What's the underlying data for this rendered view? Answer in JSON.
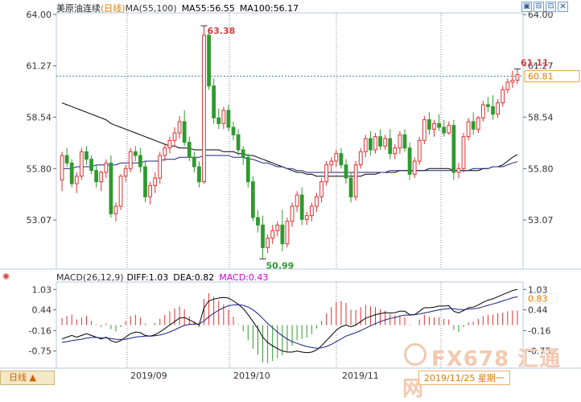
{
  "header": {
    "symbol": "美原油连续",
    "period_tag": "(日线)",
    "ma_label": "MA(55,100)",
    "ma55": "MA55:56.55",
    "ma100": "MA100:56.17"
  },
  "macd_header": {
    "label": "MACD(26,12,9)",
    "diff": "DIFF:1.03",
    "dea": "DEA:0.82",
    "macd": "MACD:0.43"
  },
  "price_axis": {
    "left_ticks": [
      "64.00",
      "61.27",
      "58.54",
      "55.80",
      "53.07"
    ],
    "right_ticks": [
      "64.00",
      "61.27",
      "58.54",
      "55.80",
      "53.07"
    ],
    "current_price": "60.81"
  },
  "macd_axis": {
    "left_ticks": [
      "1.03",
      "0.44",
      "-0.16",
      "-0.75"
    ],
    "right_ticks": [
      "1.03",
      "0.44",
      "-0.16",
      "-0.75"
    ],
    "right_marker": "0.83"
  },
  "annotations": {
    "high": "63.38",
    "low": "50.99",
    "last_high": "61.11"
  },
  "x_labels": [
    "2019/09",
    "2019/10",
    "2019/11"
  ],
  "footer": {
    "period_button": "日线 ▲",
    "date_box": "2019/11/25  星期一",
    "watermark": "FX678 汇通网"
  },
  "toolbar": [
    "▣",
    "⊟",
    "⊡",
    "✕"
  ],
  "colors": {
    "up": "#e03030",
    "down": "#2f9a2f",
    "ma55": "#000000",
    "ma100": "#1a2080",
    "grid": "#9fb4d0",
    "last_line": "#2f7fb0",
    "accent": "#e07b00"
  },
  "chart_data": [
    {
      "type": "candlestick",
      "title": "美原油连续(日线)",
      "ylim": [
        50.5,
        64.0
      ],
      "y_ticks": [
        64.0,
        61.27,
        58.54,
        55.8,
        53.07
      ],
      "x_labels": [
        "2019/09",
        "2019/10",
        "2019/11"
      ],
      "candles": [
        [
          55.2,
          56.7,
          54.6,
          56.5
        ],
        [
          56.5,
          56.9,
          55.9,
          56.1
        ],
        [
          56.1,
          56.3,
          54.8,
          55.0
        ],
        [
          55.0,
          55.6,
          54.5,
          55.4
        ],
        [
          55.4,
          56.9,
          55.2,
          56.7
        ],
        [
          56.7,
          57.0,
          56.0,
          56.3
        ],
        [
          56.3,
          56.5,
          55.5,
          55.7
        ],
        [
          55.7,
          56.0,
          54.8,
          55.1
        ],
        [
          55.1,
          55.7,
          54.6,
          55.6
        ],
        [
          55.6,
          56.3,
          55.3,
          56.1
        ],
        [
          56.1,
          56.5,
          53.2,
          53.4
        ],
        [
          53.4,
          54.0,
          53.0,
          53.8
        ],
        [
          53.8,
          55.5,
          53.6,
          55.4
        ],
        [
          55.4,
          56.0,
          55.1,
          55.8
        ],
        [
          55.8,
          56.9,
          55.6,
          56.7
        ],
        [
          56.7,
          57.0,
          56.2,
          56.5
        ],
        [
          56.5,
          56.9,
          55.6,
          55.9
        ],
        [
          55.9,
          56.2,
          54.0,
          54.3
        ],
        [
          54.3,
          55.1,
          53.9,
          54.9
        ],
        [
          54.9,
          55.6,
          54.5,
          55.3
        ],
        [
          55.3,
          56.7,
          55.0,
          56.5
        ],
        [
          56.5,
          57.1,
          56.2,
          56.9
        ],
        [
          56.9,
          57.5,
          56.6,
          57.3
        ],
        [
          57.3,
          58.0,
          57.0,
          57.7
        ],
        [
          57.7,
          58.6,
          57.4,
          58.3
        ],
        [
          58.3,
          58.9,
          57.0,
          57.2
        ],
        [
          57.2,
          57.5,
          56.2,
          56.4
        ],
        [
          56.4,
          56.7,
          55.6,
          55.9
        ],
        [
          55.9,
          56.2,
          54.8,
          55.1
        ],
        [
          55.1,
          63.4,
          55.0,
          62.9
        ],
        [
          62.9,
          63.2,
          60.0,
          60.2
        ],
        [
          60.2,
          60.6,
          58.2,
          58.5
        ],
        [
          58.5,
          59.0,
          57.9,
          58.2
        ],
        [
          58.2,
          59.1,
          57.9,
          58.9
        ],
        [
          58.9,
          59.2,
          57.8,
          58.0
        ],
        [
          58.0,
          58.3,
          57.3,
          57.6
        ],
        [
          57.6,
          57.9,
          56.5,
          56.8
        ],
        [
          56.8,
          57.0,
          56.0,
          56.4
        ],
        [
          56.4,
          56.6,
          54.8,
          55.1
        ],
        [
          55.1,
          55.4,
          53.0,
          53.2
        ],
        [
          53.2,
          53.6,
          52.4,
          52.8
        ],
        [
          52.8,
          53.3,
          51.0,
          51.6
        ],
        [
          51.6,
          52.3,
          51.3,
          52.1
        ],
        [
          52.1,
          52.8,
          51.8,
          52.5
        ],
        [
          52.5,
          53.0,
          52.2,
          52.8
        ],
        [
          52.8,
          53.6,
          51.4,
          51.8
        ],
        [
          51.8,
          53.2,
          51.6,
          53.0
        ],
        [
          53.0,
          54.0,
          52.7,
          53.8
        ],
        [
          53.8,
          54.6,
          53.5,
          54.4
        ],
        [
          54.4,
          54.8,
          52.8,
          53.1
        ],
        [
          53.1,
          53.5,
          52.8,
          53.3
        ],
        [
          53.3,
          54.0,
          53.0,
          53.8
        ],
        [
          53.8,
          54.5,
          53.5,
          54.3
        ],
        [
          54.3,
          55.3,
          54.0,
          55.1
        ],
        [
          55.1,
          56.2,
          54.9,
          56.0
        ],
        [
          56.0,
          56.4,
          55.6,
          56.2
        ],
        [
          56.2,
          56.8,
          55.9,
          56.6
        ],
        [
          56.6,
          56.9,
          55.8,
          56.0
        ],
        [
          56.0,
          56.3,
          55.0,
          55.3
        ],
        [
          55.3,
          55.6,
          54.0,
          54.3
        ],
        [
          54.3,
          56.2,
          54.1,
          56.0
        ],
        [
          56.0,
          56.9,
          55.8,
          56.7
        ],
        [
          56.7,
          57.6,
          56.4,
          57.4
        ],
        [
          57.4,
          57.8,
          56.5,
          56.8
        ],
        [
          56.8,
          57.7,
          56.6,
          57.5
        ],
        [
          57.5,
          57.9,
          56.8,
          57.0
        ],
        [
          57.0,
          57.6,
          56.8,
          57.4
        ],
        [
          57.4,
          57.9,
          56.3,
          56.6
        ],
        [
          56.6,
          57.1,
          56.3,
          56.9
        ],
        [
          56.9,
          57.8,
          56.6,
          57.6
        ],
        [
          57.6,
          57.9,
          56.7,
          56.9
        ],
        [
          56.9,
          57.2,
          55.2,
          55.5
        ],
        [
          55.5,
          56.4,
          55.3,
          56.2
        ],
        [
          56.2,
          57.5,
          56.0,
          57.3
        ],
        [
          57.3,
          58.6,
          57.1,
          58.4
        ],
        [
          58.4,
          58.8,
          57.6,
          57.9
        ],
        [
          57.9,
          58.4,
          57.5,
          58.2
        ],
        [
          58.2,
          58.7,
          57.8,
          58.0
        ],
        [
          58.0,
          58.4,
          57.5,
          57.7
        ],
        [
          57.7,
          58.3,
          57.6,
          58.1
        ],
        [
          58.1,
          58.4,
          55.2,
          55.6
        ],
        [
          55.6,
          56.1,
          55.3,
          55.8
        ],
        [
          55.8,
          57.7,
          55.6,
          57.5
        ],
        [
          57.5,
          58.5,
          57.3,
          58.3
        ],
        [
          58.3,
          58.8,
          57.6,
          57.9
        ],
        [
          57.9,
          58.6,
          57.7,
          58.5
        ],
        [
          58.5,
          59.4,
          58.3,
          59.2
        ],
        [
          59.2,
          59.6,
          58.8,
          59.1
        ],
        [
          59.1,
          59.7,
          58.4,
          58.7
        ],
        [
          58.7,
          59.5,
          58.5,
          59.3
        ],
        [
          59.3,
          60.2,
          59.1,
          60.0
        ],
        [
          60.0,
          60.6,
          59.8,
          60.4
        ],
        [
          60.4,
          61.0,
          60.1,
          60.5
        ],
        [
          60.5,
          61.1,
          60.3,
          60.8
        ]
      ],
      "ma55": [
        59.3,
        59.2,
        59.1,
        59.0,
        58.9,
        58.8,
        58.7,
        58.6,
        58.5,
        58.4,
        58.2,
        58.1,
        58.0,
        57.9,
        57.8,
        57.7,
        57.6,
        57.5,
        57.4,
        57.3,
        57.2,
        57.1,
        57.0,
        57.0,
        56.9,
        56.9,
        56.9,
        56.8,
        56.8,
        56.8,
        56.8,
        56.8,
        56.8,
        56.7,
        56.7,
        56.7,
        56.6,
        56.6,
        56.5,
        56.5,
        56.4,
        56.3,
        56.2,
        56.1,
        56.0,
        55.9,
        55.8,
        55.7,
        55.6,
        55.6,
        55.5,
        55.5,
        55.4,
        55.4,
        55.4,
        55.4,
        55.4,
        55.4,
        55.4,
        55.4,
        55.4,
        55.4,
        55.5,
        55.5,
        55.5,
        55.6,
        55.6,
        55.6,
        55.6,
        55.7,
        55.7,
        55.7,
        55.7,
        55.7,
        55.7,
        55.8,
        55.8,
        55.8,
        55.8,
        55.8,
        55.7,
        55.7,
        55.7,
        55.7,
        55.7,
        55.7,
        55.8,
        55.8,
        55.9,
        55.9,
        56.0,
        56.2,
        56.4,
        56.55
      ],
      "ma100": [
        55.8,
        55.8,
        55.8,
        55.9,
        55.9,
        55.9,
        55.9,
        56.0,
        56.0,
        56.0,
        56.0,
        56.0,
        56.1,
        56.1,
        56.1,
        56.1,
        56.1,
        56.2,
        56.2,
        56.2,
        56.2,
        56.3,
        56.3,
        56.3,
        56.4,
        56.4,
        56.4,
        56.4,
        56.4,
        56.5,
        56.5,
        56.5,
        56.5,
        56.5,
        56.5,
        56.4,
        56.4,
        56.4,
        56.3,
        56.3,
        56.2,
        56.1,
        56.1,
        56.0,
        55.9,
        55.9,
        55.8,
        55.8,
        55.7,
        55.7,
        55.6,
        55.6,
        55.6,
        55.6,
        55.6,
        55.6,
        55.6,
        55.6,
        55.6,
        55.6,
        55.6,
        55.6,
        55.6,
        55.6,
        55.6,
        55.6,
        55.6,
        55.7,
        55.7,
        55.7,
        55.7,
        55.7,
        55.7,
        55.7,
        55.7,
        55.7,
        55.7,
        55.7,
        55.7,
        55.7,
        55.7,
        55.7,
        55.7,
        55.7,
        55.8,
        55.8,
        55.8,
        55.8,
        55.9,
        55.9,
        55.9,
        56.0,
        56.1,
        56.17
      ]
    },
    {
      "type": "macd",
      "title": "MACD(26,12,9)",
      "ylim": [
        -1.2,
        1.2
      ],
      "y_ticks": [
        1.03,
        0.44,
        -0.16,
        -0.75
      ],
      "diff": [
        -0.4,
        -0.35,
        -0.3,
        -0.35,
        -0.3,
        -0.25,
        -0.3,
        -0.35,
        -0.4,
        -0.35,
        -0.45,
        -0.5,
        -0.45,
        -0.35,
        -0.25,
        -0.2,
        -0.22,
        -0.3,
        -0.32,
        -0.28,
        -0.2,
        -0.1,
        0.0,
        0.1,
        0.2,
        0.22,
        0.15,
        0.08,
        0.0,
        0.5,
        0.7,
        0.75,
        0.78,
        0.8,
        0.78,
        0.7,
        0.6,
        0.48,
        0.3,
        0.1,
        -0.1,
        -0.35,
        -0.5,
        -0.6,
        -0.68,
        -0.75,
        -0.78,
        -0.78,
        -0.75,
        -0.78,
        -0.8,
        -0.78,
        -0.72,
        -0.6,
        -0.45,
        -0.3,
        -0.15,
        -0.05,
        0.0,
        -0.05,
        0.0,
        0.1,
        0.2,
        0.25,
        0.3,
        0.33,
        0.36,
        0.35,
        0.36,
        0.4,
        0.4,
        0.3,
        0.3,
        0.4,
        0.5,
        0.5,
        0.52,
        0.55,
        0.55,
        0.56,
        0.4,
        0.35,
        0.42,
        0.5,
        0.52,
        0.58,
        0.66,
        0.72,
        0.76,
        0.82,
        0.88,
        0.94,
        1.0,
        1.03
      ],
      "dea": [
        -0.5,
        -0.48,
        -0.45,
        -0.43,
        -0.41,
        -0.38,
        -0.36,
        -0.36,
        -0.37,
        -0.37,
        -0.39,
        -0.41,
        -0.42,
        -0.41,
        -0.38,
        -0.35,
        -0.33,
        -0.32,
        -0.32,
        -0.31,
        -0.29,
        -0.25,
        -0.2,
        -0.14,
        -0.07,
        -0.01,
        0.02,
        0.03,
        0.03,
        0.12,
        0.24,
        0.34,
        0.43,
        0.5,
        0.56,
        0.58,
        0.59,
        0.57,
        0.52,
        0.44,
        0.33,
        0.19,
        0.05,
        -0.08,
        -0.2,
        -0.31,
        -0.4,
        -0.48,
        -0.53,
        -0.58,
        -0.62,
        -0.65,
        -0.67,
        -0.66,
        -0.62,
        -0.56,
        -0.48,
        -0.4,
        -0.32,
        -0.27,
        -0.22,
        -0.16,
        -0.09,
        -0.02,
        0.04,
        0.1,
        0.15,
        0.19,
        0.22,
        0.26,
        0.29,
        0.29,
        0.3,
        0.32,
        0.35,
        0.38,
        0.41,
        0.44,
        0.46,
        0.48,
        0.47,
        0.45,
        0.45,
        0.46,
        0.47,
        0.49,
        0.53,
        0.57,
        0.61,
        0.65,
        0.7,
        0.74,
        0.79,
        0.82
      ]
    }
  ]
}
